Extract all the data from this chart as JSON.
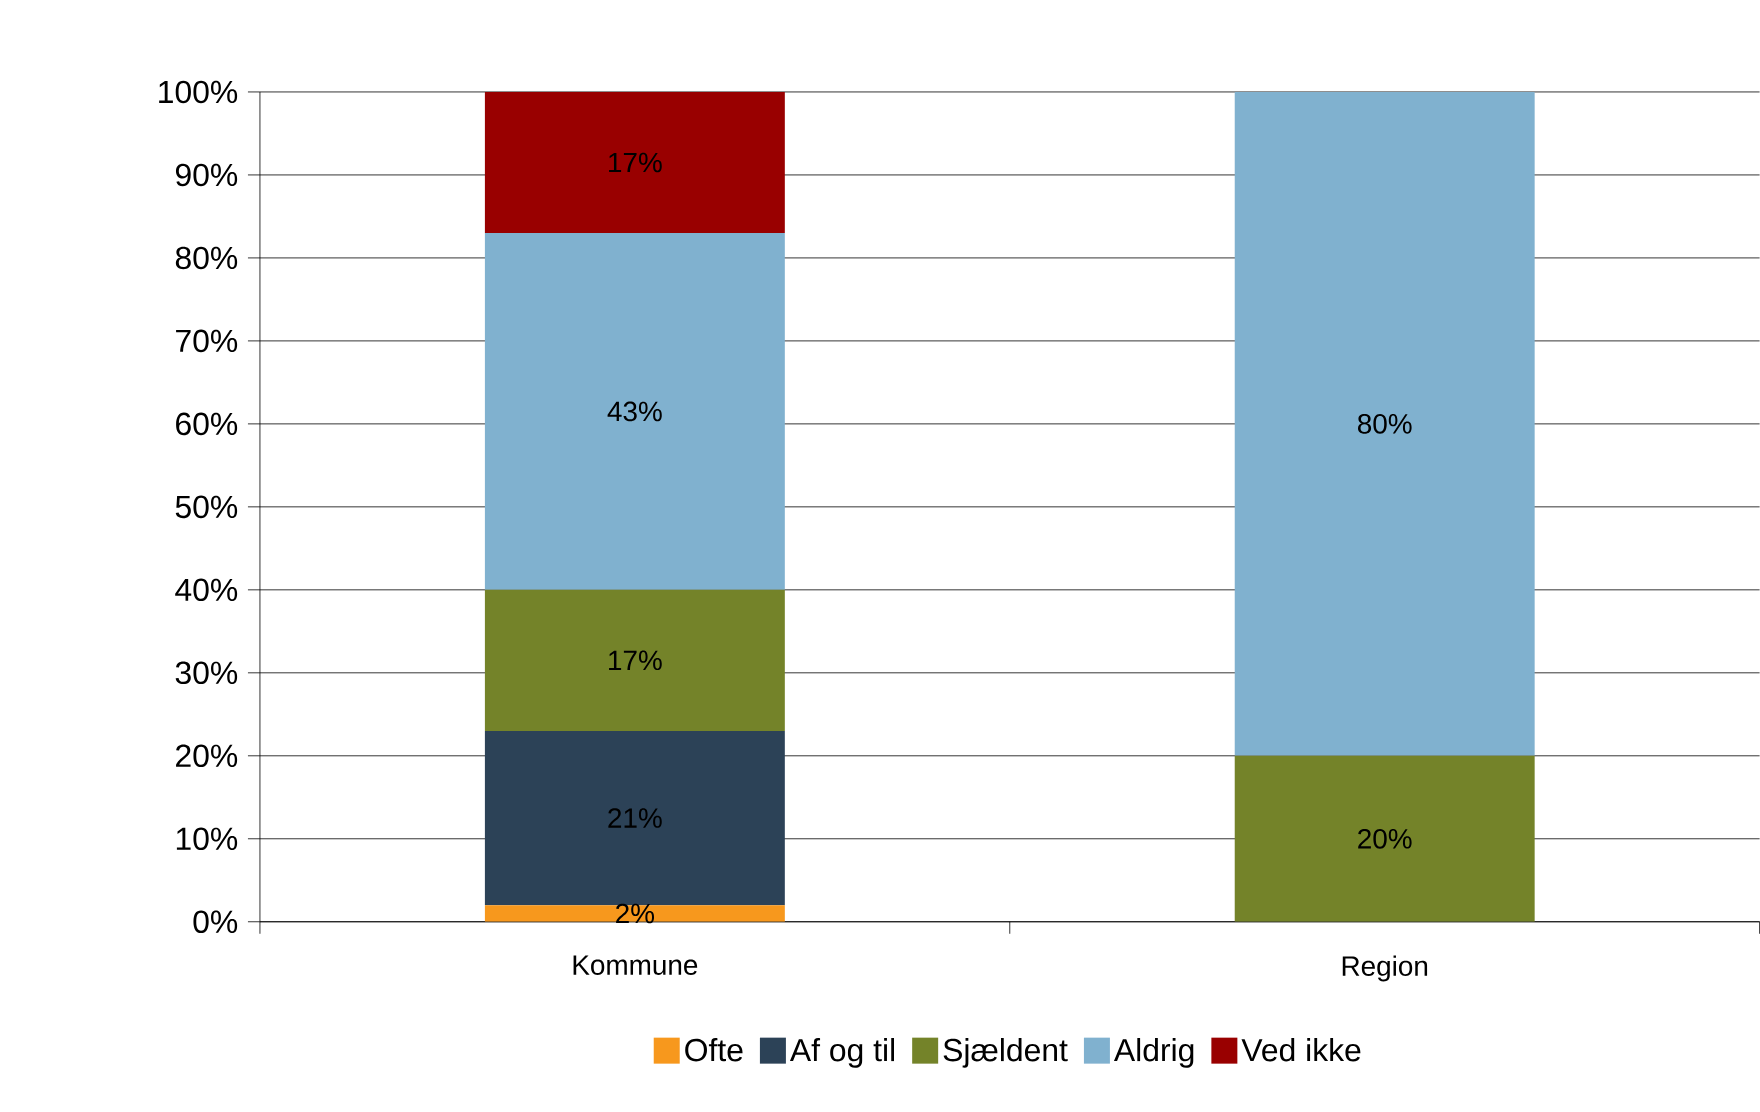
{
  "chart_data": {
    "type": "bar",
    "stacked": true,
    "categories": [
      "Kommune",
      "Region"
    ],
    "series": [
      {
        "name": "Ofte",
        "color": "#f7981d",
        "values": [
          2,
          0
        ],
        "value_labels": [
          "2%",
          null
        ]
      },
      {
        "name": "Af og til",
        "color": "#2c4257",
        "values": [
          21,
          0
        ],
        "value_labels": [
          "21%",
          null
        ]
      },
      {
        "name": "Sjældent",
        "color": "#748329",
        "values": [
          17,
          20
        ],
        "value_labels": [
          "17%",
          "20%"
        ]
      },
      {
        "name": "Aldrig",
        "color": "#80b1cf",
        "values": [
          43,
          80
        ],
        "value_labels": [
          "43%",
          "80%"
        ]
      },
      {
        "name": "Ved ikke",
        "color": "#990000",
        "values": [
          17,
          0
        ],
        "value_labels": [
          "17%",
          null
        ]
      }
    ],
    "ylim": [
      0,
      100
    ],
    "yticks": [
      {
        "value": 0,
        "label": "0%"
      },
      {
        "value": 10,
        "label": "10%"
      },
      {
        "value": 20,
        "label": "20%"
      },
      {
        "value": 30,
        "label": "30%"
      },
      {
        "value": 40,
        "label": "40%"
      },
      {
        "value": 50,
        "label": "50%"
      },
      {
        "value": 60,
        "label": "60%"
      },
      {
        "value": 70,
        "label": "70%"
      },
      {
        "value": 80,
        "label": "80%"
      },
      {
        "value": 90,
        "label": "90%"
      },
      {
        "value": 100,
        "label": "100%"
      }
    ],
    "grid": "y",
    "legend": "bottom"
  }
}
